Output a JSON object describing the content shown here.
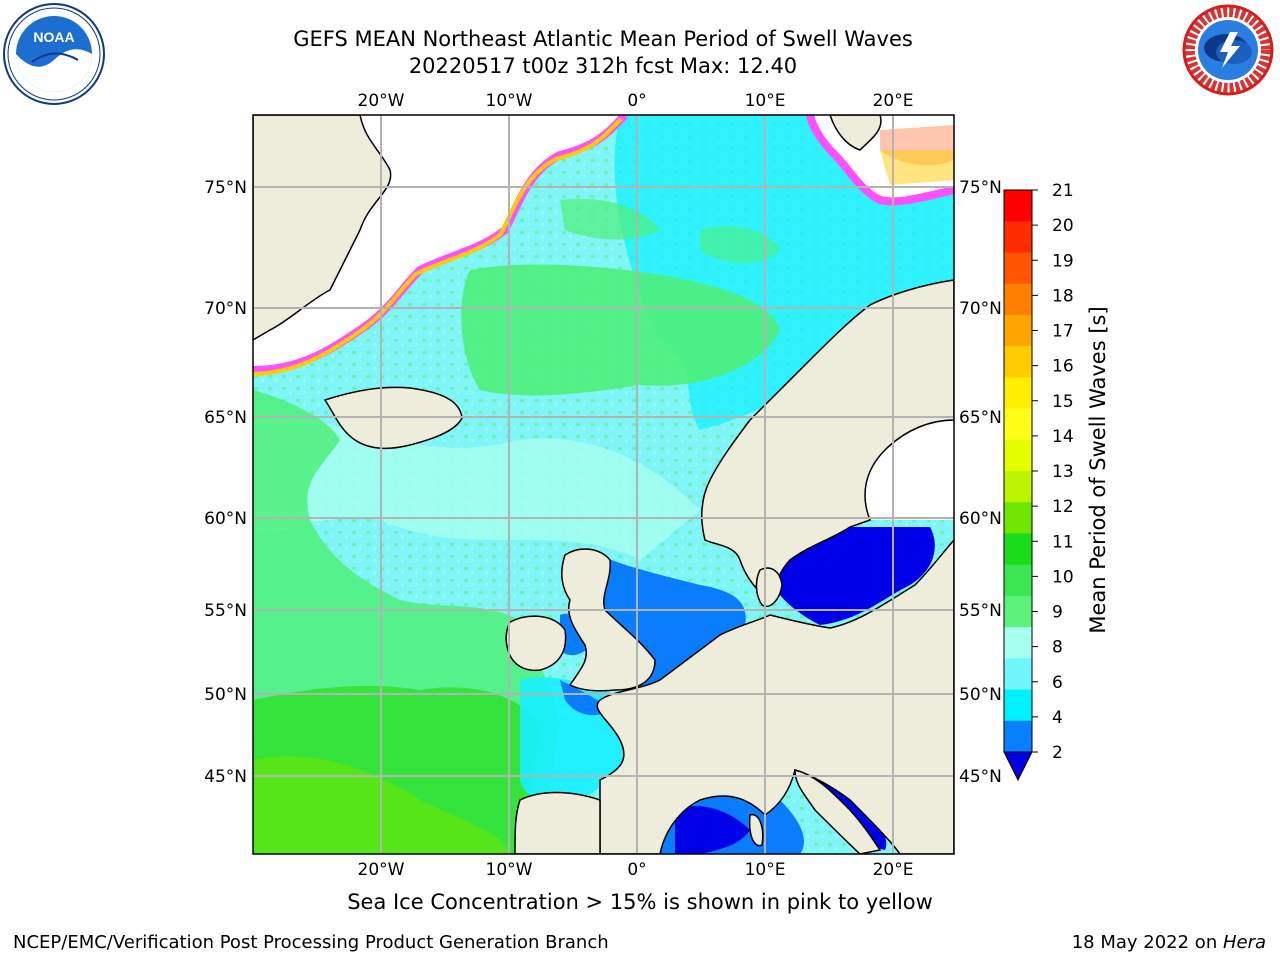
{
  "header": {
    "title_line1": "GEFS MEAN Northeast Atlantic Mean Period of Swell Waves",
    "title_line2": "20220517 t00z 312h fcst   Max: 12.40"
  },
  "map": {
    "lon_labels": [
      "20°W",
      "10°W",
      "0°",
      "10°E",
      "20°E"
    ],
    "lat_labels": [
      "75°N",
      "70°N",
      "65°N",
      "60°N",
      "55°N",
      "50°N",
      "45°N"
    ],
    "colors": {
      "land": "#eeecdb",
      "ocean_main": "#7ff5f8",
      "ocean_cyan": "#16f0ff",
      "swell_green": "#4ef07a",
      "swell_bright_green": "#2fe22f",
      "shallow_blue": "#0a7dff",
      "deep_blue": "#0000e8",
      "ice_white": "#ffffff",
      "ice_pink": "#ff50ff",
      "grid": "#b3b3b3"
    }
  },
  "colorbar": {
    "label": "Mean Period of Swell Waves [s]",
    "ticks": [
      "21",
      "20",
      "19",
      "18",
      "17",
      "16",
      "15",
      "14",
      "13",
      "12",
      "11",
      "10",
      "9",
      "8",
      "6",
      "4",
      "2"
    ],
    "colors_top_to_bottom": [
      "#ff0000",
      "#ff2a00",
      "#ff5500",
      "#ff7f00",
      "#ffa500",
      "#ffcc00",
      "#ffee00",
      "#ffff1a",
      "#e6ff00",
      "#bdf500",
      "#6ee600",
      "#1adc1a",
      "#3ce650",
      "#5cf27c",
      "#a7fff0",
      "#6ff7fb",
      "#00f0ff",
      "#0a80ff"
    ],
    "extend_color": "#0000e0"
  },
  "ice_note": "Sea Ice Concentration > 15% is shown in pink to yellow",
  "footer": {
    "left": "NCEP/EMC/Verification Post Processing Product Generation Branch",
    "right_prefix": "18 May 2022 on ",
    "right_system": "Hera"
  }
}
